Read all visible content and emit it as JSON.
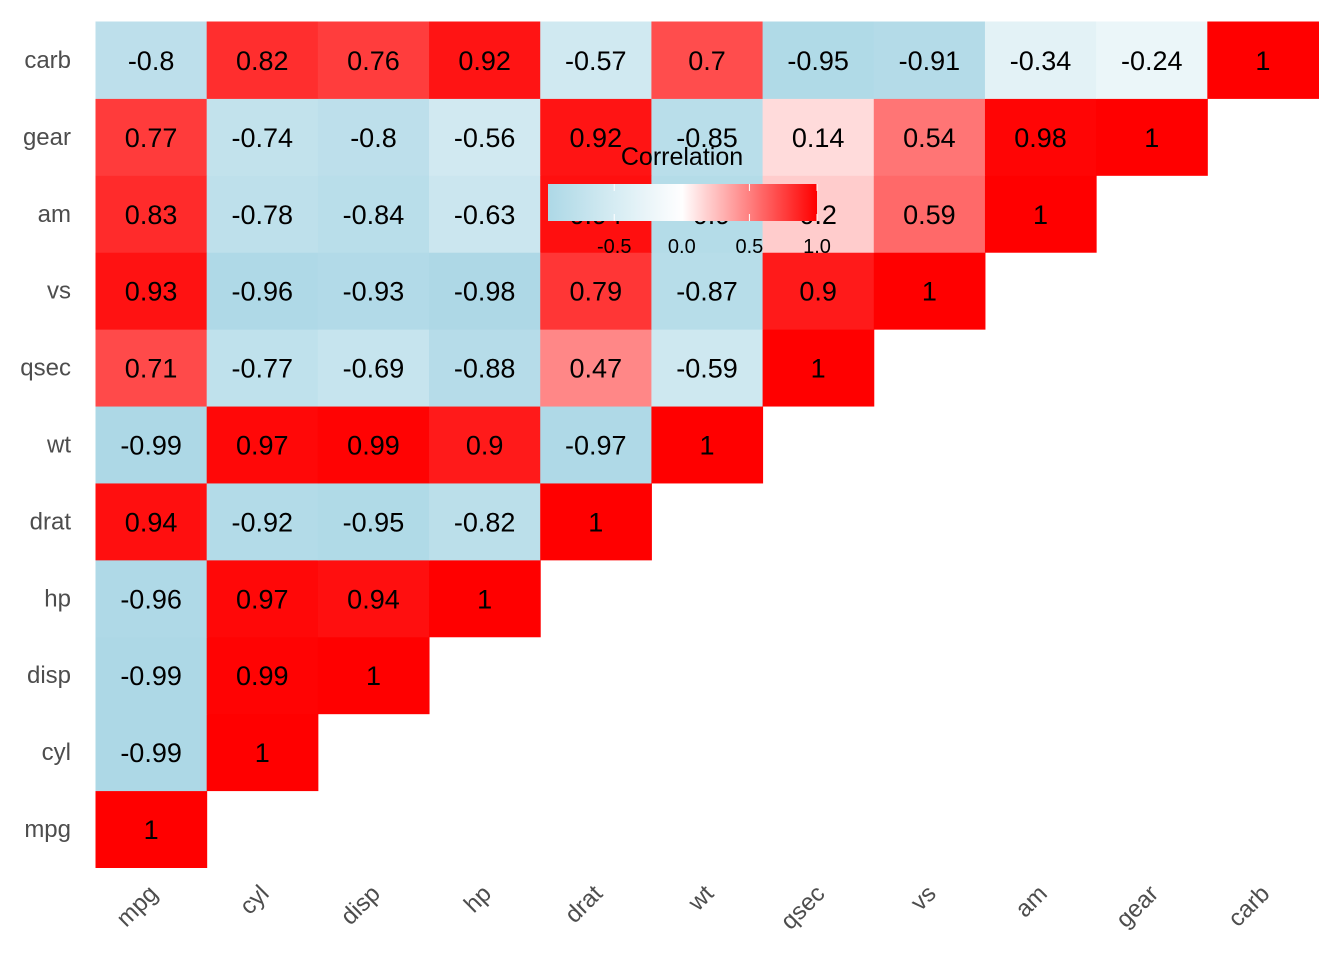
{
  "chart_data": {
    "type": "heatmap",
    "variables": [
      "mpg",
      "cyl",
      "disp",
      "hp",
      "drat",
      "wt",
      "qsec",
      "vs",
      "am",
      "gear",
      "carb"
    ],
    "triangle": "lower",
    "matrix": [
      [
        1,
        -0.99,
        -0.99,
        -0.96,
        0.94,
        -0.99,
        0.71,
        0.93,
        0.83,
        0.77,
        -0.8
      ],
      [
        -0.99,
        1,
        0.99,
        0.97,
        -0.92,
        0.97,
        -0.77,
        -0.96,
        -0.78,
        -0.74,
        0.82
      ],
      [
        -0.99,
        0.99,
        1,
        0.94,
        -0.95,
        0.99,
        -0.69,
        -0.93,
        -0.84,
        -0.8,
        0.76
      ],
      [
        -0.96,
        0.97,
        0.94,
        1,
        -0.82,
        0.9,
        -0.88,
        -0.98,
        -0.63,
        -0.56,
        0.92
      ],
      [
        0.94,
        -0.92,
        -0.95,
        -0.82,
        1,
        -0.97,
        0.47,
        0.79,
        0.94,
        0.92,
        -0.57
      ],
      [
        -0.99,
        0.97,
        0.99,
        0.9,
        -0.97,
        1,
        -0.59,
        -0.87,
        -0.9,
        -0.85,
        0.7
      ],
      [
        0.71,
        -0.77,
        -0.69,
        -0.88,
        0.47,
        -0.59,
        1,
        0.9,
        0.2,
        0.14,
        -0.95
      ],
      [
        0.93,
        -0.96,
        -0.93,
        -0.98,
        0.79,
        -0.87,
        0.9,
        1,
        0.59,
        0.54,
        -0.91
      ],
      [
        0.83,
        -0.78,
        -0.84,
        -0.63,
        0.94,
        -0.9,
        0.2,
        0.59,
        1,
        0.98,
        -0.34
      ],
      [
        0.77,
        -0.74,
        -0.8,
        -0.56,
        0.92,
        -0.85,
        0.14,
        0.54,
        0.98,
        1,
        -0.24
      ],
      [
        -0.8,
        0.82,
        0.76,
        0.92,
        -0.57,
        0.7,
        -0.95,
        -0.91,
        -0.34,
        -0.24,
        1
      ]
    ],
    "legend": {
      "title": "Correlation",
      "ticks": [
        "-0.5",
        "0.0",
        "0.5",
        "1.0"
      ],
      "tick_values": [
        -0.5,
        0,
        0.5,
        1.0
      ],
      "range": [
        -0.99,
        1.0
      ],
      "placement": "top-center"
    },
    "colors": {
      "low": "#add8e6",
      "mid": "#ffffff",
      "high": "#ff0000"
    },
    "grid": false
  }
}
